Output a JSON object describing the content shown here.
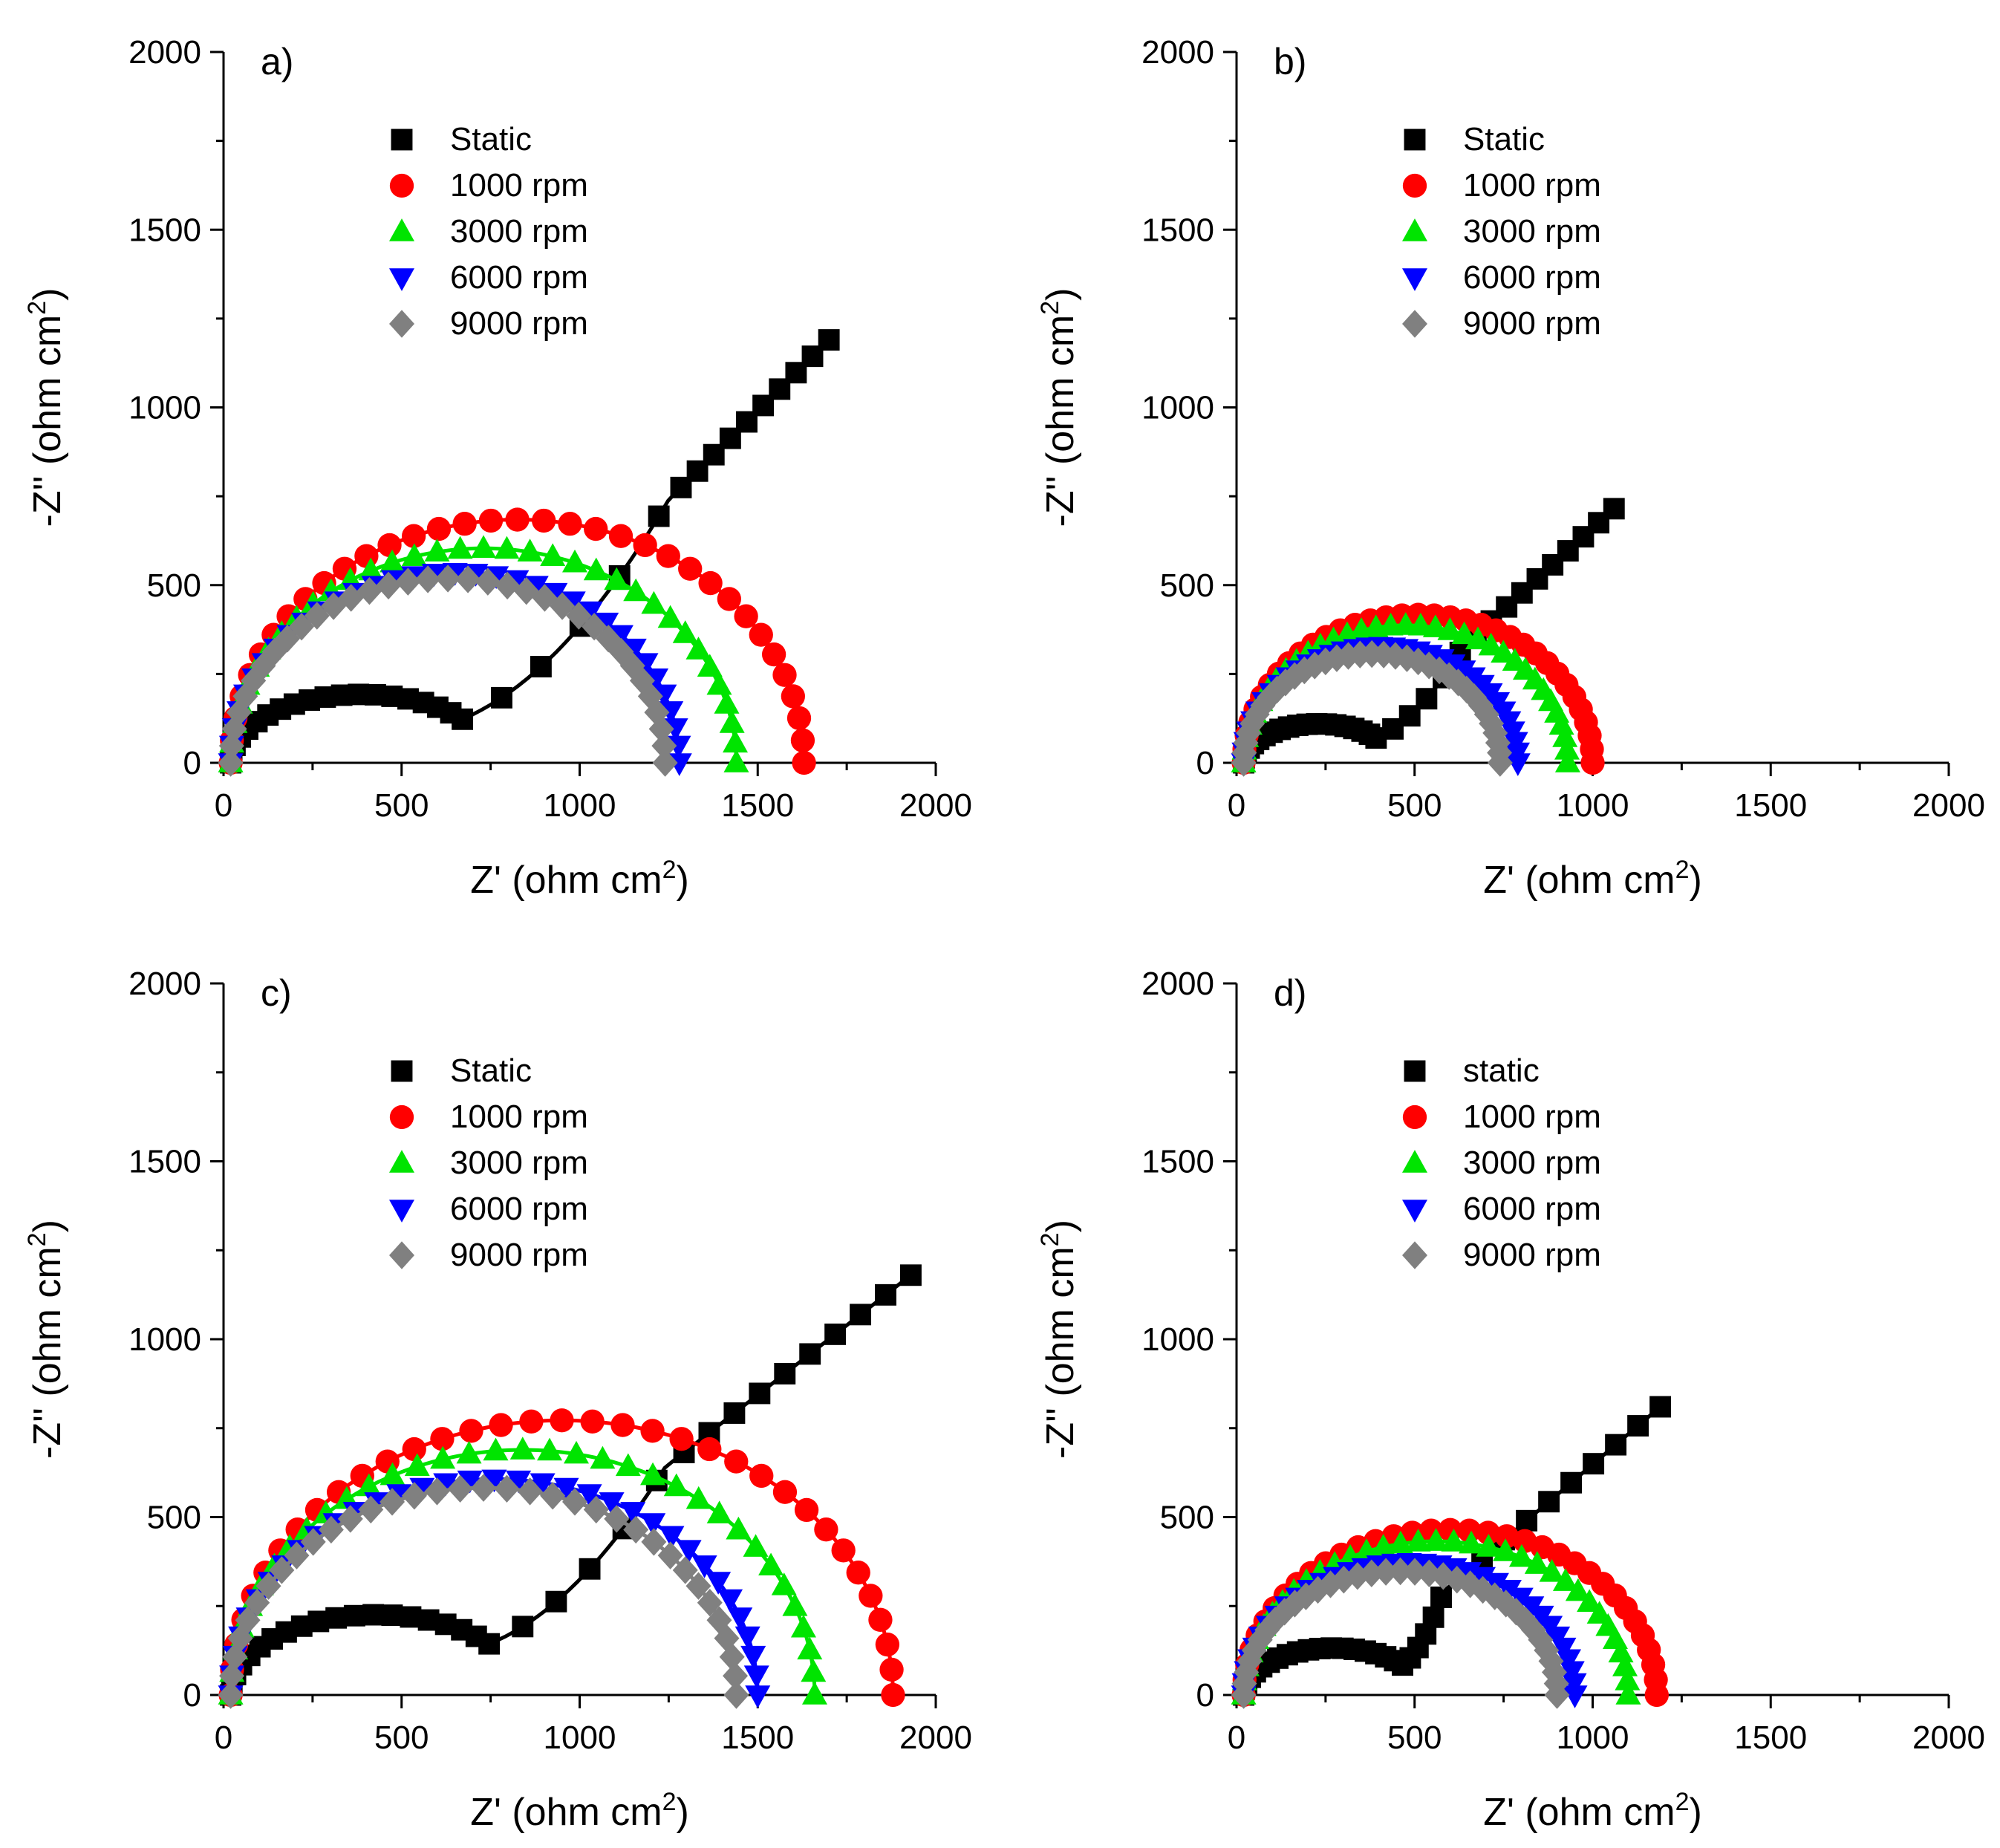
{
  "figure": {
    "panels": [
      "a)",
      "b)",
      "c)",
      "d)"
    ]
  },
  "chart_data": [
    {
      "type": "scatter",
      "panel": "a)",
      "title": "",
      "xlabel": "Z' (ohm cm2)",
      "ylabel": "-Z'' (ohm cm2)",
      "xlim": [
        0,
        2000
      ],
      "ylim": [
        0,
        2000
      ],
      "xticks": [
        "0",
        "500",
        "1000",
        "1500",
        "2000"
      ],
      "yticks": [
        "0",
        "500",
        "1000",
        "1500",
        "2000"
      ],
      "legend_position": "top-left",
      "series": [
        {
          "name": "Static",
          "marker": "square",
          "color": "#000000",
          "model": "static",
          "params": {
            "r0": 20,
            "R1": 700,
            "P1": 1.05,
            "scale": 1.0,
            "tail": [
              [
                1250,
                740
              ],
              [
                1700,
                1190
              ]
            ]
          },
          "fit": true
        },
        {
          "name": "1000 rpm",
          "marker": "circle",
          "color": "#ff0000",
          "model": "semi",
          "params": {
            "r0": 20,
            "R": 1610,
            "k": 0.85
          },
          "fit": true
        },
        {
          "name": "3000 rpm",
          "marker": "triangle-up",
          "color": "#00e400",
          "model": "semi",
          "params": {
            "r0": 20,
            "R": 1420,
            "k": 0.85
          },
          "fit": true
        },
        {
          "name": "6000 rpm",
          "marker": "triangle-down",
          "color": "#0000ff",
          "model": "semi",
          "params": {
            "r0": 20,
            "R": 1260,
            "k": 0.85
          },
          "fit": true
        },
        {
          "name": "9000 rpm",
          "marker": "diamond",
          "color": "#808080",
          "model": "semi",
          "params": {
            "r0": 20,
            "R": 1220,
            "k": 0.85
          },
          "fit": true
        }
      ]
    },
    {
      "type": "scatter",
      "panel": "b)",
      "title": "",
      "xlabel": "Z' (ohm cm2)",
      "ylabel": "-Z'' (ohm cm2)",
      "xlim": [
        0,
        2000
      ],
      "ylim": [
        0,
        2000
      ],
      "xticks": [
        "0",
        "500",
        "1000",
        "1500",
        "2000"
      ],
      "yticks": [
        "0",
        "500",
        "1000",
        "1500",
        "2000"
      ],
      "legend_position": "top-left",
      "series": [
        {
          "name": "Static",
          "marker": "square",
          "color": "#000000",
          "model": "static",
          "params": {
            "r0": 20,
            "R1": 420,
            "P1": 1.0,
            "scale": 0.95,
            "tail": [
              [
                640,
                330
              ],
              [
                1060,
                715
              ]
            ]
          },
          "fit": true
        },
        {
          "name": "1000 rpm",
          "marker": "circle",
          "color": "#ff0000",
          "model": "semi",
          "params": {
            "r0": 20,
            "R": 980,
            "k": 0.85
          },
          "fit": true
        },
        {
          "name": "3000 rpm",
          "marker": "triangle-up",
          "color": "#00e400",
          "model": "semi",
          "params": {
            "r0": 20,
            "R": 910,
            "k": 0.85
          },
          "fit": true
        },
        {
          "name": "6000 rpm",
          "marker": "triangle-down",
          "color": "#0000ff",
          "model": "semi",
          "params": {
            "r0": 20,
            "R": 770,
            "k": 0.85
          },
          "fit": true
        },
        {
          "name": "9000 rpm",
          "marker": "diamond",
          "color": "#808080",
          "model": "semi",
          "params": {
            "r0": 20,
            "R": 720,
            "k": 0.85
          },
          "fit": true
        }
      ]
    },
    {
      "type": "scatter",
      "panel": "c)",
      "title": "",
      "xlabel": "Z' (ohm cm2)",
      "ylabel": "-Z'' (ohm cm2)",
      "xlim": [
        0,
        2000
      ],
      "ylim": [
        0,
        2000
      ],
      "xticks": [
        "0",
        "500",
        "1000",
        "1500",
        "2000"
      ],
      "yticks": [
        "0",
        "500",
        "1000",
        "1500",
        "2000"
      ],
      "legend_position": "top-left",
      "series": [
        {
          "name": "Static",
          "marker": "square",
          "color": "#000000",
          "model": "static",
          "params": {
            "r0": 20,
            "R1": 820,
            "P1": 1.0,
            "scale": 1.0,
            "tail": [
              [
                1240,
                640
              ],
              [
                1930,
                1180
              ]
            ]
          },
          "fit": true
        },
        {
          "name": "1000 rpm",
          "marker": "circle",
          "color": "#ff0000",
          "model": "semi",
          "params": {
            "r0": 20,
            "R": 1860,
            "k": 0.83
          },
          "fit": true
        },
        {
          "name": "3000 rpm",
          "marker": "triangle-up",
          "color": "#00e400",
          "model": "semi",
          "params": {
            "r0": 20,
            "R": 1640,
            "k": 0.84
          },
          "fit": true
        },
        {
          "name": "6000 rpm",
          "marker": "triangle-down",
          "color": "#0000ff",
          "model": "semi",
          "params": {
            "r0": 20,
            "R": 1480,
            "k": 0.82
          },
          "fit": true
        },
        {
          "name": "9000 rpm",
          "marker": "diamond",
          "color": "#808080",
          "model": "semi",
          "params": {
            "r0": 20,
            "R": 1420,
            "k": 0.82
          },
          "fit": true
        }
      ]
    },
    {
      "type": "scatter",
      "panel": "d)",
      "title": "",
      "xlabel": "Z' (ohm cm2)",
      "ylabel": "-Z'' (ohm cm2)",
      "xlim": [
        0,
        2000
      ],
      "ylim": [
        0,
        2000
      ],
      "xticks": [
        "0",
        "500",
        "1000",
        "1500",
        "2000"
      ],
      "yticks": [
        "0",
        "500",
        "1000",
        "1500",
        "2000"
      ],
      "legend_position": "top-left",
      "series": [
        {
          "name": "static",
          "marker": "square",
          "color": "#000000",
          "model": "static",
          "params": {
            "r0": 20,
            "R1": 480,
            "P1": 1.05,
            "scale": 1.0,
            "tail": [
              [
                580,
                290
              ],
              [
                1190,
                810
              ]
            ]
          },
          "fit": true
        },
        {
          "name": "1000 rpm",
          "marker": "circle",
          "color": "#ff0000",
          "model": "semi",
          "params": {
            "r0": 20,
            "R": 1160,
            "k": 0.8
          },
          "fit": true
        },
        {
          "name": "3000 rpm",
          "marker": "triangle-up",
          "color": "#00e400",
          "model": "semi",
          "params": {
            "r0": 20,
            "R": 1080,
            "k": 0.8
          },
          "fit": true
        },
        {
          "name": "6000 rpm",
          "marker": "triangle-down",
          "color": "#0000ff",
          "model": "semi",
          "params": {
            "r0": 20,
            "R": 930,
            "k": 0.8
          },
          "fit": true
        },
        {
          "name": "9000 rpm",
          "marker": "diamond",
          "color": "#808080",
          "model": "semi",
          "params": {
            "r0": 20,
            "R": 880,
            "k": 0.79
          },
          "fit": true
        }
      ]
    }
  ]
}
